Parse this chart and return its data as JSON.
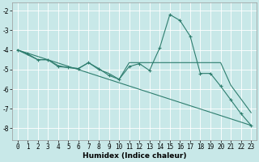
{
  "xlabel": "Humidex (Indice chaleur)",
  "bg_color": "#c8e8e8",
  "grid_color": "#ffffff",
  "line_color": "#2e7d6e",
  "xlim": [
    -0.5,
    23.5
  ],
  "ylim": [
    -8.6,
    -1.6
  ],
  "yticks": [
    -8,
    -7,
    -6,
    -5,
    -4,
    -3,
    -2
  ],
  "xticks": [
    0,
    1,
    2,
    3,
    4,
    5,
    6,
    7,
    8,
    9,
    10,
    11,
    12,
    13,
    14,
    15,
    16,
    17,
    18,
    19,
    20,
    21,
    22,
    23
  ],
  "series1_x": [
    0,
    1,
    2,
    3,
    4,
    5,
    6,
    7,
    8,
    9,
    10,
    11,
    12,
    13,
    14,
    15,
    16,
    17,
    18,
    19,
    20,
    21,
    22,
    23
  ],
  "series1_y": [
    -4.0,
    -4.2,
    -4.5,
    -4.5,
    -4.85,
    -4.9,
    -4.95,
    -4.65,
    -4.95,
    -5.3,
    -5.5,
    -4.85,
    -4.7,
    -5.05,
    -3.9,
    -2.2,
    -2.5,
    -3.3,
    -5.2,
    -5.2,
    -5.85,
    -6.55,
    -7.25,
    -7.85
  ],
  "series2_x": [
    0,
    2,
    3,
    4,
    5,
    6,
    7,
    8,
    9,
    10,
    11,
    12,
    13,
    14,
    15,
    16,
    17,
    18,
    19,
    20,
    21,
    22,
    23
  ],
  "series2_y": [
    -4.0,
    -4.5,
    -4.5,
    -4.8,
    -4.9,
    -4.95,
    -4.65,
    -5.0,
    -5.2,
    -5.5,
    -4.65,
    -4.65,
    -4.65,
    -4.65,
    -4.65,
    -4.65,
    -4.65,
    -4.65,
    -4.65,
    -4.65,
    -5.8,
    -6.5,
    -7.2
  ],
  "series3_x": [
    0,
    23
  ],
  "series3_y": [
    -4.0,
    -7.85
  ],
  "tick_fontsize": 5.5,
  "label_fontsize": 6.5
}
